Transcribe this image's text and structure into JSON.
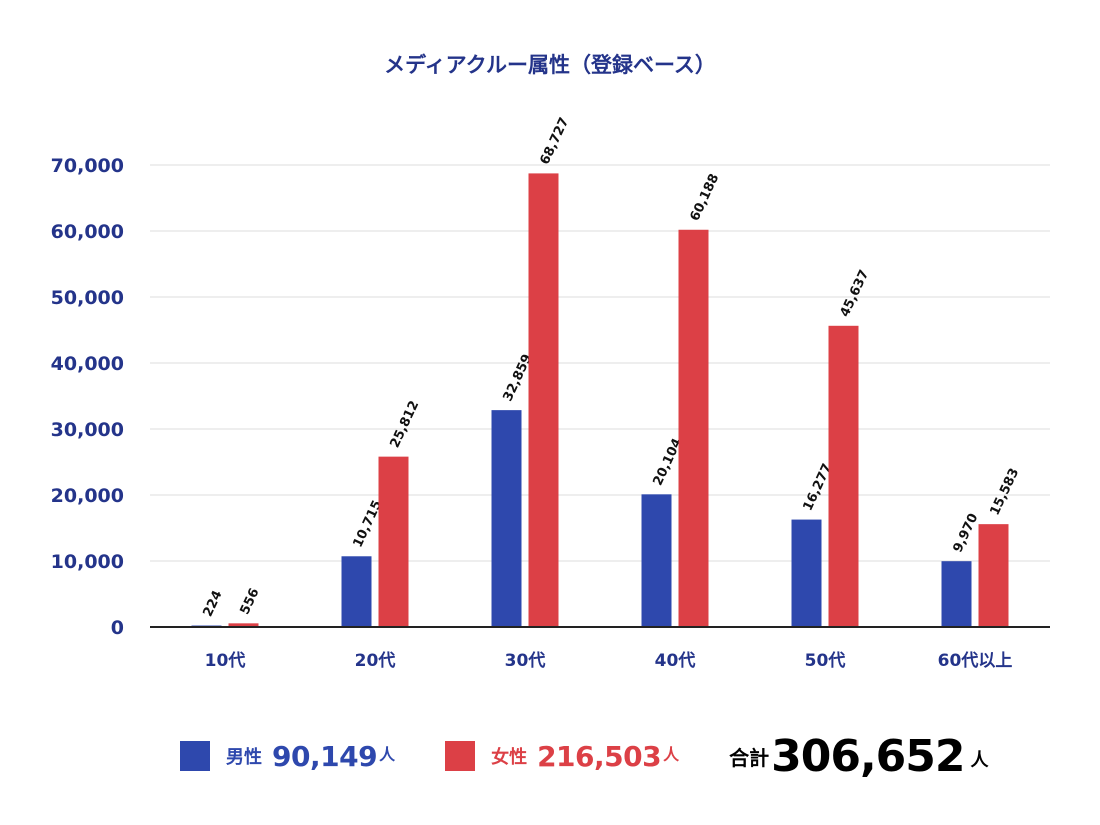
{
  "colors": {
    "male": "#2E48AD",
    "female": "#DC4046",
    "title": "#24348A",
    "axis": "#24348A",
    "grid": "#DDDDDD",
    "baseline": "#222222"
  },
  "chart_data": {
    "type": "bar",
    "title": "メディアクルー属性（登録ベース）",
    "categories": [
      "10代",
      "20代",
      "30代",
      "40代",
      "50代",
      "60代以上"
    ],
    "series": [
      {
        "name": "男性",
        "values": [
          224,
          10715,
          32859,
          20104,
          16277,
          9970
        ],
        "labels": [
          "224",
          "10,715",
          "32,859",
          "20,104",
          "16,277",
          "9,970"
        ]
      },
      {
        "name": "女性",
        "values": [
          556,
          25812,
          68727,
          60188,
          45637,
          15583
        ],
        "labels": [
          "556",
          "25,812",
          "68,727",
          "60,188",
          "45,637",
          "15,583"
        ]
      }
    ],
    "yticks": [
      "0",
      "10,000",
      "20,000",
      "30,000",
      "40,000",
      "50,000",
      "60,000",
      "70,000"
    ],
    "ylim": [
      0,
      70000
    ],
    "grid": true,
    "legend_position": "bottom"
  },
  "legend": {
    "male_label": "男性",
    "male_total": "90,149",
    "female_label": "女性",
    "female_total": "216,503",
    "unit": "人",
    "total_label": "合計",
    "total_value": "306,652"
  }
}
